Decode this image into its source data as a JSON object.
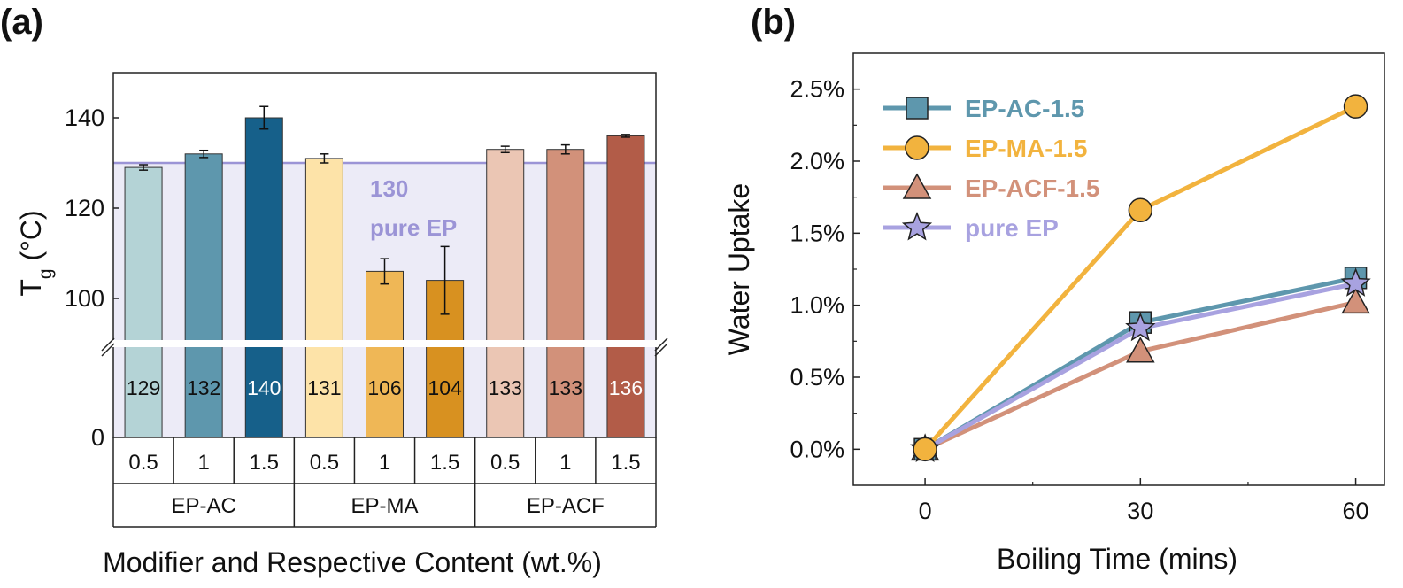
{
  "panels": {
    "a": "(a)",
    "b": "(b)"
  },
  "chart_data": [
    {
      "type": "bar",
      "title": "",
      "ylabel_main": "T",
      "ylabel_sub": "g",
      "ylabel_rest": " (°C)",
      "xlabel": "Modifier and Respective Content (wt.%)",
      "y_broken": true,
      "ylim_upper": [
        90,
        150
      ],
      "y_ticks_upper": [
        100,
        120,
        140
      ],
      "y_tick_lower": 0,
      "groups": [
        "EP-AC",
        "EP-MA",
        "EP-ACF"
      ],
      "contents": [
        "0.5",
        "1",
        "1.5"
      ],
      "bars": [
        {
          "group": "EP-AC",
          "content": "0.5",
          "value": 129,
          "label": "129",
          "err": 0.6,
          "color": "#b4d3d6",
          "label_color": "#111111"
        },
        {
          "group": "EP-AC",
          "content": "1",
          "value": 132,
          "label": "132",
          "err": 0.8,
          "color": "#5e97ad",
          "label_color": "#111111"
        },
        {
          "group": "EP-AC",
          "content": "1.5",
          "value": 140,
          "label": "140",
          "err": 2.5,
          "color": "#16608a",
          "label_color": "#ffffff"
        },
        {
          "group": "EP-MA",
          "content": "0.5",
          "value": 131,
          "label": "131",
          "err": 1.0,
          "color": "#fde3a8",
          "label_color": "#111111"
        },
        {
          "group": "EP-MA",
          "content": "1",
          "value": 106,
          "label": "106",
          "err": 2.8,
          "color": "#efb756",
          "label_color": "#111111"
        },
        {
          "group": "EP-MA",
          "content": "1.5",
          "value": 104,
          "label": "104",
          "err": 7.5,
          "color": "#d89120",
          "label_color": "#111111"
        },
        {
          "group": "EP-ACF",
          "content": "0.5",
          "value": 133,
          "label": "133",
          "err": 0.7,
          "color": "#ebc6b4",
          "label_color": "#111111"
        },
        {
          "group": "EP-ACF",
          "content": "1",
          "value": 133,
          "label": "133",
          "err": 1.0,
          "color": "#d2917a",
          "label_color": "#111111"
        },
        {
          "group": "EP-ACF",
          "content": "1.5",
          "value": 136,
          "label": "136",
          "err": 0.3,
          "color": "#b25c48",
          "label_color": "#ffffff"
        }
      ],
      "reference": {
        "value": 130,
        "label_value": "130",
        "label_text": "pure EP",
        "color": "#9b94d6",
        "fill": "#ecebf7"
      }
    },
    {
      "type": "line",
      "title": "",
      "xlabel": "Boiling Time (mins)",
      "ylabel": "Water Uptake",
      "x_ticks": [
        0,
        30,
        60
      ],
      "xlim": [
        -10,
        64
      ],
      "ylim": [
        -0.25,
        2.75
      ],
      "y_ticks": [
        "0.0%",
        "0.5%",
        "1.0%",
        "1.5%",
        "2.0%",
        "2.5%"
      ],
      "y_tick_values": [
        0,
        0.5,
        1.0,
        1.5,
        2.0,
        2.5
      ],
      "legend_position": "top-left",
      "series": [
        {
          "name": "EP-AC-1.5",
          "marker": "square",
          "color": "#5e97ad",
          "x": [
            0,
            30,
            60
          ],
          "y": [
            0.0,
            0.88,
            1.19
          ]
        },
        {
          "name": "EP-MA-1.5",
          "marker": "circle",
          "color": "#f2b33e",
          "x": [
            0,
            30,
            60
          ],
          "y": [
            0.0,
            1.66,
            2.38
          ]
        },
        {
          "name": "EP-ACF-1.5",
          "marker": "triangle",
          "color": "#d2917a",
          "x": [
            0,
            30,
            60
          ],
          "y": [
            0.0,
            0.68,
            1.02
          ]
        },
        {
          "name": "pure EP",
          "marker": "star",
          "color": "#a8a2e0",
          "x": [
            0,
            30,
            60
          ],
          "y": [
            0.0,
            0.84,
            1.15
          ]
        }
      ]
    }
  ]
}
